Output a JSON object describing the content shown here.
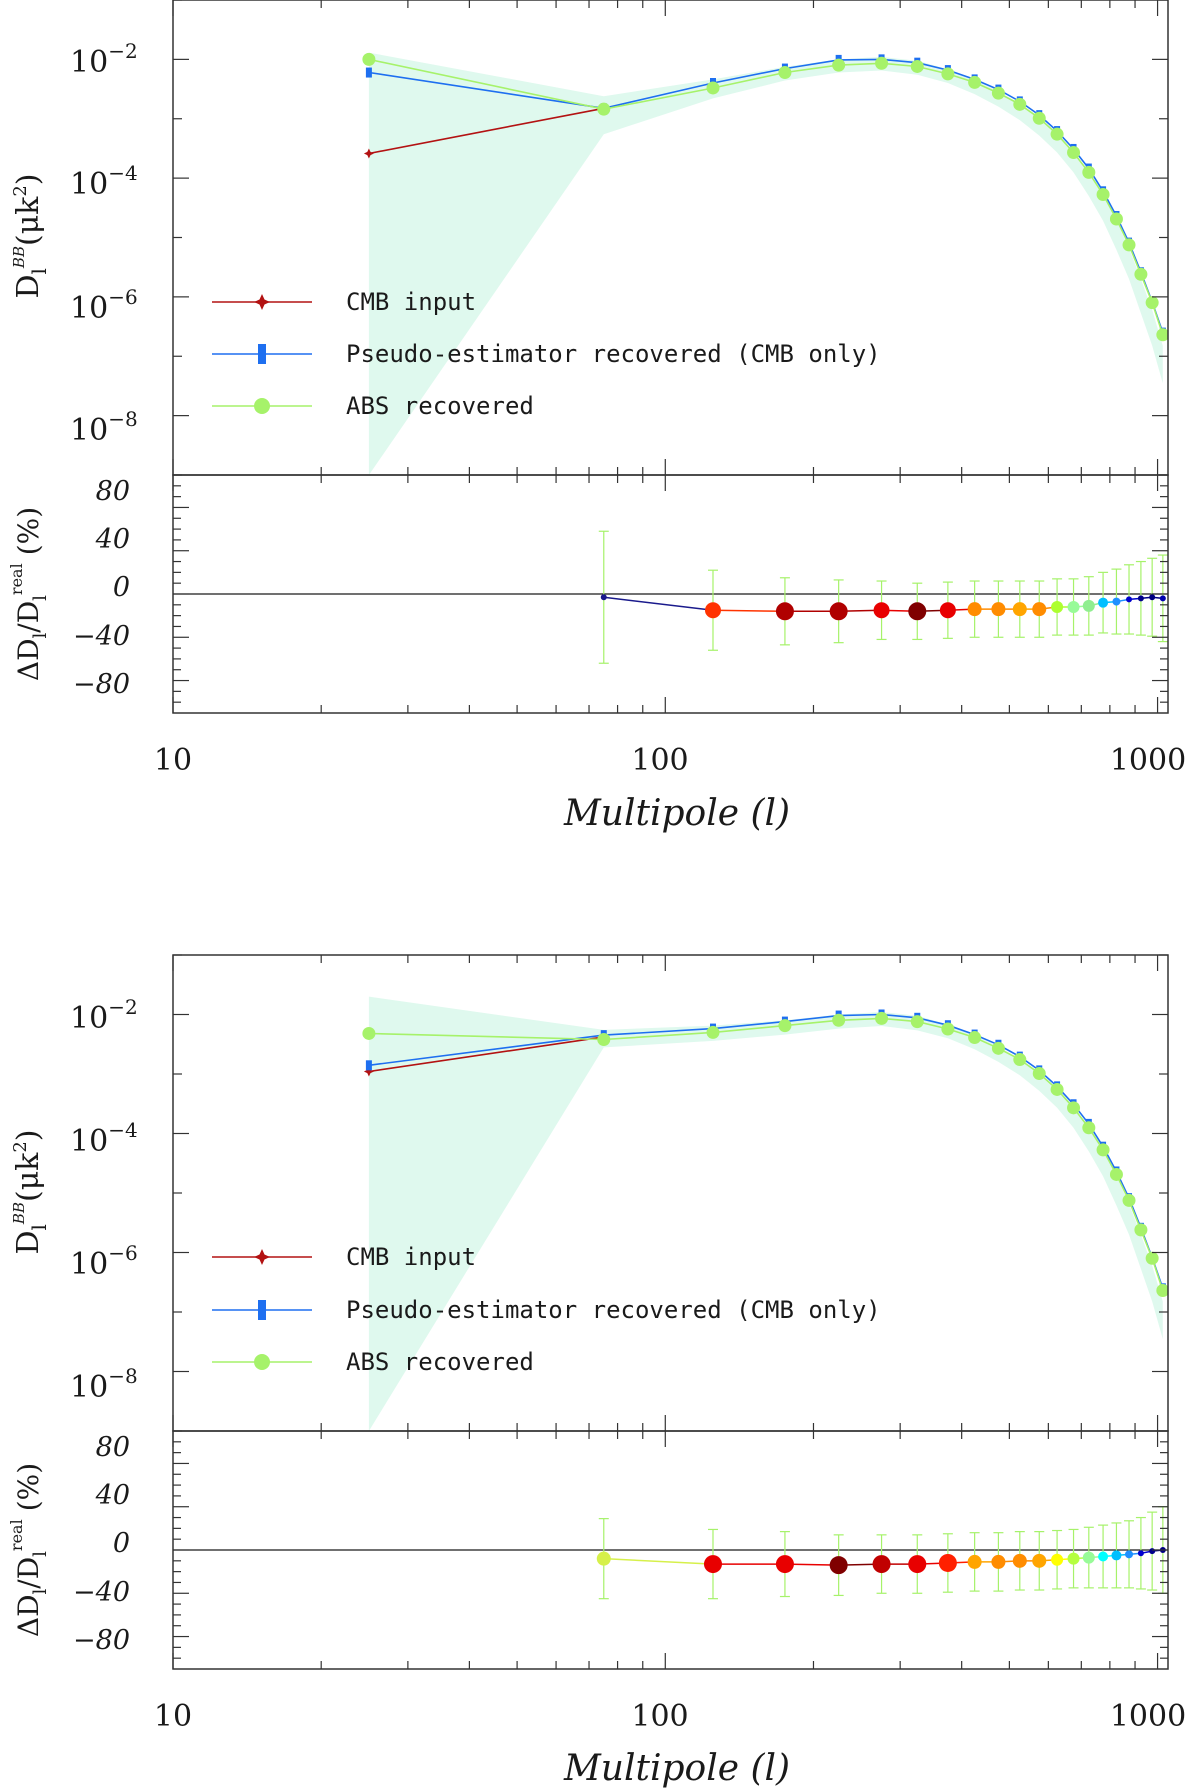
{
  "chart_data": [
    {
      "panel": "top",
      "type": "line",
      "upper": {
        "ylabel": "D_l^BB (μk²)",
        "ylabel_parts": {
          "main": "D",
          "sub": "l",
          "sup": "BB",
          "unit": "(μk",
          "unit_sup": "2",
          "unit_close": ")"
        },
        "yscale": "log",
        "ylim": [
          1e-09,
          0.1
        ],
        "yticks": [
          {
            "value": 0.01,
            "base": "10",
            "exp": "−2"
          },
          {
            "value": 0.0001,
            "base": "10",
            "exp": "−4"
          },
          {
            "value": 1e-06,
            "base": "10",
            "exp": "−6"
          },
          {
            "value": 1e-08,
            "base": "10",
            "exp": "−8"
          }
        ],
        "legend_position": "lower-left",
        "x": [
          25,
          75,
          125,
          175,
          225,
          275,
          325,
          375,
          425,
          475,
          525,
          575,
          625,
          675,
          725,
          775,
          825,
          875,
          925,
          975,
          1025
        ],
        "band": {
          "name": "ABS uncertainty band",
          "color": "#dff9ee",
          "lower": [
            1e-09,
            0.00055,
            0.0022,
            0.0044,
            0.006,
            0.0065,
            0.0055,
            0.004,
            0.0026,
            0.0016,
            0.00095,
            0.00052,
            0.00027,
            0.000125,
            5e-05,
            1.9e-05,
            6.2e-06,
            2e-06,
            5.3e-07,
            1.5e-07,
            3.5e-08
          ],
          "upper": [
            0.013,
            0.0024,
            0.0046,
            0.0075,
            0.01,
            0.011,
            0.0095,
            0.0068,
            0.0045,
            0.0029,
            0.0018,
            0.00108,
            0.00058,
            0.000285,
            0.000127,
            5.2e-05,
            1.95e-05,
            6.6e-06,
            2e-06,
            6e-07,
            1.5e-07
          ]
        },
        "series": [
          {
            "name": "CMB input",
            "color": "#b31212",
            "marker": "star",
            "values": [
              0.00026,
              0.0015
            ]
          },
          {
            "name": "Pseudo-estimator recovered (CMB only)",
            "color": "#1e6ff0",
            "marker": "bar",
            "values": [
              0.006,
              0.0015,
              0.004,
              0.007,
              0.0098,
              0.01,
              0.0088,
              0.0066,
              0.0046,
              0.0031,
              0.00196,
              0.00115,
              0.00062,
              0.00031,
              0.000145,
              6e-05,
              2.3e-05,
              8.2e-06,
              2.6e-06,
              8.2e-07,
              2.5e-07
            ]
          },
          {
            "name": "ABS recovered",
            "color": "#a6f26a",
            "marker": "circle",
            "values": [
              0.01,
              0.00145,
              0.0033,
              0.006,
              0.008,
              0.0086,
              0.0076,
              0.0057,
              0.0041,
              0.0027,
              0.00175,
              0.00102,
              0.00055,
              0.00027,
              0.000125,
              5.3e-05,
              2.05e-05,
              7.5e-06,
              2.4e-06,
              8e-07,
              2.3e-07
            ]
          }
        ]
      },
      "lower": {
        "ylabel": "ΔD_l/D_l^real (%)",
        "ylabel_parts": {
          "delta": "ΔD",
          "sub1": "l",
          "slash": "/D",
          "sub2": "l",
          "sup": "real",
          "unit": "(%)"
        },
        "ylim": [
          -110,
          110
        ],
        "yticks": [
          80,
          40,
          0,
          -40,
          -80
        ],
        "ytick_labels": [
          "80",
          "40",
          "0",
          "−40",
          "−80"
        ],
        "xlabel": "Multipole (l)",
        "xscale": "log",
        "xlim": [
          10,
          1050
        ],
        "xticks": [
          {
            "value": 10,
            "label": "10"
          },
          {
            "value": 100,
            "label": "100"
          },
          {
            "value": 1000,
            "label": "1000"
          }
        ],
        "x": [
          75,
          125,
          175,
          225,
          275,
          325,
          375,
          425,
          475,
          525,
          575,
          625,
          675,
          725,
          775,
          825,
          875,
          925,
          975,
          1025
        ],
        "values": [
          -3,
          -15,
          -16,
          -16,
          -15,
          -16,
          -15,
          -14,
          -14,
          -14,
          -14,
          -12,
          -12,
          -11,
          -8,
          -7,
          -5,
          -4,
          -3,
          -4
        ],
        "error": [
          61,
          37,
          31,
          29,
          27,
          26,
          26,
          26,
          26,
          26,
          26,
          26,
          26,
          27,
          28,
          30,
          32,
          34,
          36,
          40
        ],
        "colors": [
          "#1a1a8c",
          "#ff3300",
          "#b00000",
          "#b00000",
          "#e80000",
          "#800000",
          "#e80000",
          "#ff8c00",
          "#ff8c00",
          "#ffa500",
          "#ff8c00",
          "#adff2f",
          "#98fb98",
          "#90ee90",
          "#00bfff",
          "#1e90ff",
          "#0000cd",
          "#00008b",
          "#000080",
          "#0000b0"
        ],
        "sizes": [
          3,
          8,
          9,
          9,
          8,
          9,
          8,
          7,
          7,
          7,
          7,
          6,
          6,
          6,
          5,
          4,
          3,
          3,
          3,
          3
        ]
      }
    },
    {
      "panel": "bottom",
      "type": "line",
      "upper": {
        "ylabel": "D_l^BB (μk²)",
        "ylabel_parts": {
          "main": "D",
          "sub": "l",
          "sup": "BB",
          "unit": "(μk",
          "unit_sup": "2",
          "unit_close": ")"
        },
        "yscale": "log",
        "ylim": [
          1e-09,
          0.1
        ],
        "yticks": [
          {
            "value": 0.01,
            "base": "10",
            "exp": "−2"
          },
          {
            "value": 0.0001,
            "base": "10",
            "exp": "−4"
          },
          {
            "value": 1e-06,
            "base": "10",
            "exp": "−6"
          },
          {
            "value": 1e-08,
            "base": "10",
            "exp": "−8"
          }
        ],
        "legend_position": "lower-left",
        "x": [
          25,
          75,
          125,
          175,
          225,
          275,
          325,
          375,
          425,
          475,
          525,
          575,
          625,
          675,
          725,
          775,
          825,
          875,
          925,
          975,
          1025
        ],
        "band": {
          "name": "ABS uncertainty band",
          "color": "#dff9ee",
          "lower": [
            1e-09,
            0.0028,
            0.0036,
            0.0046,
            0.0058,
            0.0064,
            0.0054,
            0.004,
            0.0026,
            0.0016,
            0.00095,
            0.00052,
            0.00027,
            0.000125,
            5e-05,
            1.9e-05,
            6.2e-06,
            2e-06,
            5.3e-07,
            1.5e-07,
            3.5e-08
          ],
          "upper": [
            0.02,
            0.0055,
            0.0065,
            0.008,
            0.01,
            0.011,
            0.0095,
            0.0068,
            0.0045,
            0.0029,
            0.0018,
            0.00108,
            0.00058,
            0.000285,
            0.000127,
            5.2e-05,
            1.95e-05,
            6.6e-06,
            2e-06,
            6e-07,
            1.5e-07
          ]
        },
        "series": [
          {
            "name": "CMB input",
            "color": "#b31212",
            "marker": "star",
            "values": [
              0.0011,
              0.0042
            ]
          },
          {
            "name": "Pseudo-estimator recovered (CMB only)",
            "color": "#1e6ff0",
            "marker": "bar",
            "values": [
              0.0014,
              0.0045,
              0.0058,
              0.0076,
              0.0096,
              0.01,
              0.0088,
              0.0066,
              0.0046,
              0.0031,
              0.00196,
              0.00115,
              0.00062,
              0.00031,
              0.000145,
              6e-05,
              2.3e-05,
              8.2e-06,
              2.6e-06,
              8.2e-07,
              2.5e-07
            ]
          },
          {
            "name": "ABS recovered",
            "color": "#a6f26a",
            "marker": "circle",
            "values": [
              0.0048,
              0.0038,
              0.005,
              0.0065,
              0.008,
              0.0086,
              0.0076,
              0.0057,
              0.0041,
              0.0027,
              0.00175,
              0.00102,
              0.00055,
              0.00027,
              0.000125,
              5.3e-05,
              2.05e-05,
              7.5e-06,
              2.4e-06,
              8e-07,
              2.3e-07
            ]
          }
        ]
      },
      "lower": {
        "ylabel": "ΔD_l/D_l^real (%)",
        "ylabel_parts": {
          "delta": "ΔD",
          "sub1": "l",
          "slash": "/D",
          "sub2": "l",
          "sup": "real",
          "unit": "(%)"
        },
        "ylim": [
          -110,
          110
        ],
        "yticks": [
          80,
          40,
          0,
          -40,
          -80
        ],
        "ytick_labels": [
          "80",
          "40",
          "0",
          "−40",
          "−80"
        ],
        "xlabel": "Multipole (l)",
        "xscale": "log",
        "xlim": [
          10,
          1050
        ],
        "xticks": [
          {
            "value": 10,
            "label": "10"
          },
          {
            "value": 100,
            "label": "100"
          },
          {
            "value": 1000,
            "label": "1000"
          }
        ],
        "x": [
          75,
          125,
          175,
          225,
          275,
          325,
          375,
          425,
          475,
          525,
          575,
          625,
          675,
          725,
          775,
          825,
          875,
          925,
          975,
          1025
        ],
        "values": [
          -8,
          -13,
          -13,
          -14,
          -13,
          -13,
          -12,
          -11,
          -11,
          -10,
          -10,
          -9,
          -8,
          -7,
          -6,
          -5,
          -4,
          -3,
          -1,
          0
        ],
        "error": [
          37,
          32,
          30,
          28,
          27,
          27,
          27,
          27,
          27,
          27,
          27,
          27,
          27,
          28,
          29,
          30,
          31,
          33,
          36,
          40
        ],
        "colors": [
          "#d6f04a",
          "#e80000",
          "#e80000",
          "#800000",
          "#c00000",
          "#e80000",
          "#ff2000",
          "#ffa500",
          "#ff8c00",
          "#ff8c00",
          "#ffa500",
          "#ffff00",
          "#b5ff3f",
          "#98fb98",
          "#00ffff",
          "#00bfff",
          "#1e90ff",
          "#0000cd",
          "#00008b",
          "#000080"
        ],
        "sizes": [
          7,
          9,
          9,
          9,
          9,
          9,
          9,
          7,
          7,
          7,
          7,
          6,
          6,
          6,
          5,
          5,
          4,
          3,
          3,
          3
        ]
      }
    }
  ]
}
